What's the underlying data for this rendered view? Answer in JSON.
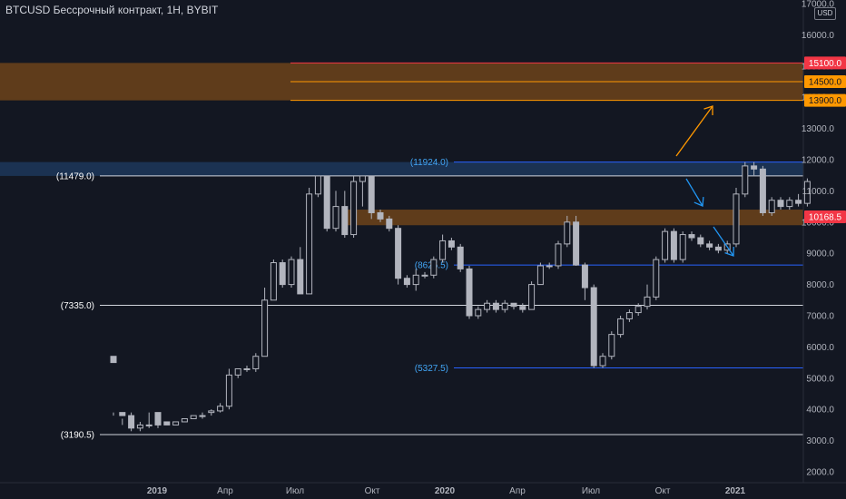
{
  "header": {
    "title": "BTCUSD Бессрочный контракт, 1H, BYBIT",
    "currency": "USD"
  },
  "colors": {
    "background": "#131722",
    "candle_body_up": "#131722",
    "candle_body_down": "#b2b5be",
    "candle_border": "#b2b5be",
    "support_white": "#d1d4dc",
    "support_blue": "#2962ff",
    "zone_orange": "#7a4a1a",
    "zone_blue": "#1e3a5f",
    "line_red": "#f23645",
    "line_orange": "#ff9800",
    "arrow_blue": "#2196f3"
  },
  "chart_data": {
    "type": "candlestick",
    "ylim": [
      2000,
      17000
    ],
    "y_ticks": [
      17000,
      16000,
      15000,
      14000,
      13000,
      12000,
      11000,
      10000,
      9000,
      8000,
      7000,
      6000,
      5000,
      4000,
      3000,
      2000
    ],
    "y_tick_labels": [
      "17000.0",
      "16000.0",
      "15000.0",
      "14000.0",
      "13000.0",
      "12000.0",
      "11000.0",
      "10000.0",
      "9000.0",
      "8000.0",
      "7000.0",
      "6000.0",
      "5000.0",
      "4000.0",
      "3000.0",
      "2000.0"
    ],
    "x_ticks": [
      "2019",
      "Апр",
      "Июл",
      "Окт",
      "2020",
      "Апр",
      "Июл",
      "Окт",
      "2021"
    ],
    "candles": [
      [
        5700,
        5500,
        3900,
        3800
      ],
      [
        3900,
        3800,
        3700,
        3500
      ],
      [
        3800,
        3400,
        3900,
        3300
      ],
      [
        3400,
        3500,
        3600,
        3300
      ],
      [
        3500,
        3500,
        3900,
        3400
      ],
      [
        3900,
        3500,
        3900,
        3400
      ],
      [
        3600,
        3500,
        3600,
        3500
      ],
      [
        3500,
        3600,
        3600,
        3500
      ],
      [
        3600,
        3700,
        3700,
        3600
      ],
      [
        3700,
        3800,
        3800,
        3700
      ],
      [
        3800,
        3800,
        3900,
        3700
      ],
      [
        3900,
        3950,
        4000,
        3800
      ],
      [
        3950,
        4100,
        4200,
        3900
      ],
      [
        4100,
        5100,
        5300,
        4000
      ],
      [
        5100,
        5300,
        5300,
        5000
      ],
      [
        5300,
        5300,
        5400,
        5200
      ],
      [
        5300,
        5700,
        5800,
        5200
      ],
      [
        5700,
        7500,
        7900,
        5700
      ],
      [
        7500,
        8700,
        8800,
        7500
      ],
      [
        8700,
        8000,
        8800,
        7900
      ],
      [
        8000,
        8800,
        8900,
        7900
      ],
      [
        8800,
        7700,
        9200,
        7700
      ],
      [
        7700,
        10900,
        11100,
        7700
      ],
      [
        10900,
        11479,
        11479,
        10800
      ],
      [
        11479,
        9800,
        11479,
        9700
      ],
      [
        9800,
        10500,
        11000,
        9700
      ],
      [
        10500,
        9600,
        11000,
        9500
      ],
      [
        9600,
        11300,
        11479,
        9500
      ],
      [
        11300,
        11479,
        11479,
        10500
      ],
      [
        11479,
        10300,
        11479,
        10100
      ],
      [
        10300,
        10100,
        10400,
        10000
      ],
      [
        10100,
        9800,
        10200,
        9700
      ],
      [
        9800,
        8200,
        9900,
        8000
      ],
      [
        8200,
        8000,
        8300,
        7900
      ],
      [
        8000,
        8300,
        8500,
        7800
      ],
      [
        8300,
        8300,
        8400,
        8200
      ],
      [
        8300,
        8800,
        8900,
        8200
      ],
      [
        8800,
        9400,
        9600,
        8700
      ],
      [
        9400,
        9200,
        9500,
        9100
      ],
      [
        9200,
        8500,
        9300,
        8400
      ],
      [
        8500,
        7000,
        8600,
        6900
      ],
      [
        7000,
        7200,
        7300,
        6900
      ],
      [
        7200,
        7400,
        7500,
        7100
      ],
      [
        7400,
        7200,
        7500,
        7100
      ],
      [
        7200,
        7400,
        7500,
        7100
      ],
      [
        7400,
        7300,
        7400,
        7200
      ],
      [
        7300,
        7200,
        7400,
        7100
      ],
      [
        7200,
        8000,
        8100,
        7200
      ],
      [
        8000,
        8600,
        8700,
        8000
      ],
      [
        8600,
        8600,
        8700,
        8500
      ],
      [
        8600,
        9300,
        9400,
        8500
      ],
      [
        9300,
        10000,
        10200,
        9200
      ],
      [
        10000,
        8625,
        10200,
        8600
      ],
      [
        8625,
        7900,
        8700,
        7500
      ],
      [
        7900,
        5400,
        8000,
        5327
      ],
      [
        5400,
        5700,
        5800,
        5327
      ],
      [
        5700,
        6400,
        6500,
        5600
      ],
      [
        6400,
        6900,
        7000,
        6300
      ],
      [
        6900,
        7100,
        7200,
        6800
      ],
      [
        7100,
        7300,
        7400,
        7000
      ],
      [
        7300,
        7600,
        8000,
        7200
      ],
      [
        7600,
        8800,
        8900,
        7500
      ],
      [
        8800,
        9700,
        9800,
        8700
      ],
      [
        9700,
        8800,
        9800,
        8700
      ],
      [
        8800,
        9600,
        9700,
        8700
      ],
      [
        9600,
        9500,
        9700,
        9400
      ],
      [
        9500,
        9300,
        9600,
        9200
      ],
      [
        9300,
        9200,
        9400,
        9100
      ],
      [
        9200,
        9100,
        9300,
        9000
      ],
      [
        9100,
        9300,
        9400,
        9000
      ],
      [
        9300,
        10900,
        11100,
        9200
      ],
      [
        10900,
        11800,
        11924,
        10800
      ],
      [
        11800,
        11700,
        11924,
        11500
      ],
      [
        11700,
        10300,
        11800,
        10200
      ],
      [
        10300,
        10700,
        10800,
        10200
      ],
      [
        10700,
        10500,
        10800,
        10400
      ],
      [
        10500,
        10700,
        10800,
        10400
      ],
      [
        10700,
        10600,
        10900,
        10500
      ],
      [
        10600,
        11300,
        11400,
        10500
      ]
    ],
    "levels": [
      {
        "value": 11479.0,
        "label": "(11479.0)",
        "kind": "white"
      },
      {
        "value": 7335.0,
        "label": "(7335.0)",
        "kind": "white"
      },
      {
        "value": 3190.5,
        "label": "(3190.5)",
        "kind": "white"
      },
      {
        "value": 11924.0,
        "label": "(11924.0)",
        "kind": "blue"
      },
      {
        "value": 8625.5,
        "label": "(8625.5)",
        "kind": "blue"
      },
      {
        "value": 5327.5,
        "label": "(5327.5)",
        "kind": "blue"
      }
    ],
    "zones": [
      {
        "from": 13900,
        "to": 15100,
        "kind": "orange"
      },
      {
        "from": 11479,
        "to": 11924,
        "kind": "blue"
      },
      {
        "from": 9900,
        "to": 10400,
        "kind": "orange"
      }
    ],
    "price_tags": [
      {
        "value": 15100,
        "label": "15100.0",
        "color": "#f23645"
      },
      {
        "value": 14500,
        "label": "14500.0",
        "color": "#ff9800"
      },
      {
        "value": 13900,
        "label": "13900.0",
        "color": "#ff9800"
      },
      {
        "value": 10168.5,
        "label": "10168.5",
        "color": "#f23645"
      }
    ],
    "arrows": [
      {
        "kind": "orange"
      },
      {
        "kind": "blue-short"
      },
      {
        "kind": "blue-long"
      }
    ]
  }
}
